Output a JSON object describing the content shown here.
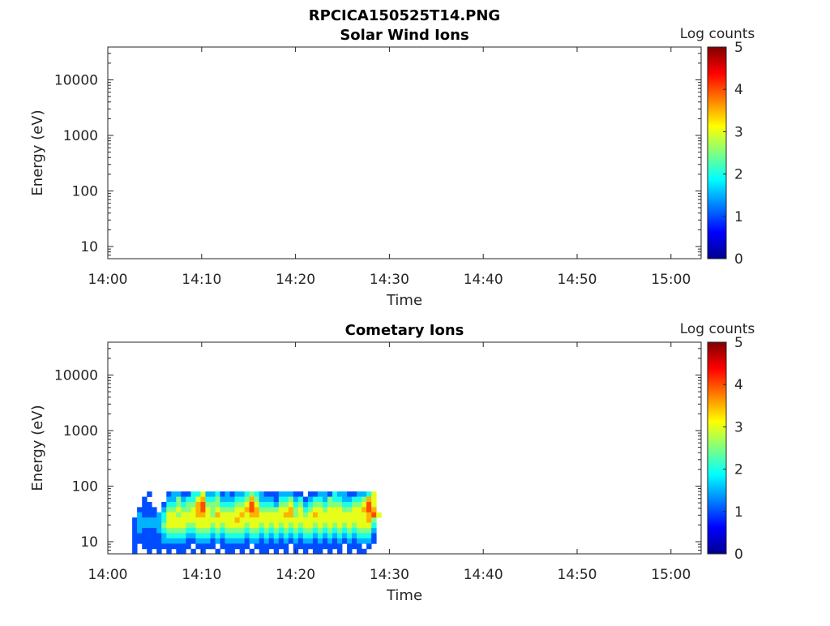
{
  "chart_data": {
    "type": "heatmap",
    "title": "RPCICA150525T14.PNG",
    "colorbar": {
      "label": "Log counts",
      "range": [
        0,
        5
      ],
      "ticks": [
        "0",
        "1",
        "2",
        "3",
        "4",
        "5"
      ],
      "colormap": "jet"
    },
    "xticks": [
      "14:00",
      "14:10",
      "14:20",
      "14:30",
      "14:40",
      "14:50",
      "15:00"
    ],
    "xtick_minutes": [
      0,
      10,
      20,
      30,
      40,
      50,
      60
    ],
    "xlim_minutes_after_14_00": [
      0,
      63.2
    ],
    "yticks": [
      "10",
      "100",
      "1000",
      "10000"
    ],
    "ytick_values": [
      10,
      100,
      1000,
      10000
    ],
    "ylim": [
      6,
      38000
    ],
    "panels": [
      {
        "title": "Solar Wind Ions",
        "xlabel": "Time",
        "ylabel": "Energy (eV)",
        "data": null
      },
      {
        "title": "Cometary Ions",
        "xlabel": "Time",
        "ylabel": "Energy (eV)",
        "data": {
          "time_start_minutes": 2.6,
          "time_step_minutes": 0.52,
          "energy_min": 6,
          "energy_max": 80,
          "value_scale": 0.5,
          "rows_high_to_low_energy": [
            "...2...2332244633423233454322233322.22332433223346",
            "..2....3353446744533344575333244534234435443344576",
            "..22..24454557855544455686444355645345545554455686",
            ".2222.35565567865655566787555566756456656665566787",
            ".32223466566677657666676776666677565676666666666786",
            "23333346666666666666676666666666666666666666666675",
            "23333356666556665656666566565656565665656565656664",
            "23222345555445554545555455454545454554545454545553",
            "22222234444334443434444344343434343443434343434442",
            "22222233333223332323333233232323232332323232323332",
            "2.2222222222.2222.222222.2222222.2222222222.222.2.",
            "2..2.2.2.22.2.2..2.22.2.2.22.2.2.2.2.22.2.2.2.22.."
          ]
        }
      }
    ]
  }
}
